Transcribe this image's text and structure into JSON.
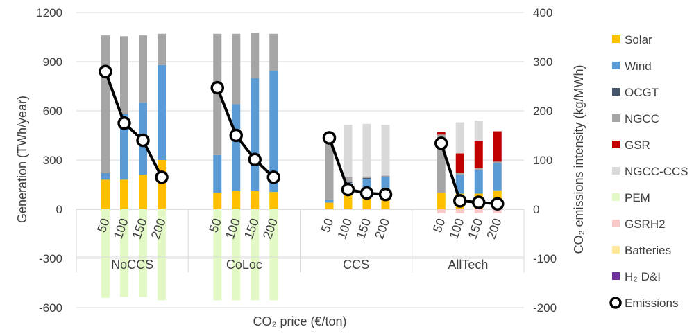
{
  "chart_data": {
    "type": "bar",
    "stacked": true,
    "xlabel": "CO₂ price (€/ton)",
    "ylabel": "Generation (TWh/year)",
    "y2label": "CO₂ emissions intensity (kg/MWh)",
    "ylim": [
      -600,
      1200
    ],
    "y2lim": [
      -200,
      400
    ],
    "yticks": [
      -600,
      -300,
      0,
      300,
      600,
      900,
      1200
    ],
    "y2ticks": [
      -200,
      -100,
      0,
      100,
      200,
      300,
      400
    ],
    "legend_position": "right",
    "groups": [
      {
        "name": "NoCCS",
        "categories": [
          "50",
          "100",
          "150",
          "200"
        ]
      },
      {
        "name": "CoLoc",
        "categories": [
          "50",
          "100",
          "150",
          "200"
        ]
      },
      {
        "name": "CCS",
        "categories": [
          "50",
          "100",
          "150",
          "200"
        ]
      },
      {
        "name": "AllTech",
        "categories": [
          "50",
          "100",
          "150",
          "200"
        ]
      }
    ],
    "series": [
      {
        "name": "Solar",
        "color": "#ffc000",
        "values": [
          180,
          180,
          210,
          300,
          100,
          110,
          110,
          105,
          40,
          95,
          100,
          100,
          100,
          95,
          95,
          115
        ]
      },
      {
        "name": "Wind",
        "color": "#5b9bd5",
        "values": [
          40,
          400,
          440,
          580,
          230,
          530,
          690,
          740,
          15,
          65,
          85,
          95,
          0,
          115,
          145,
          165
        ]
      },
      {
        "name": "OCGT",
        "color": "#44546a",
        "values": [
          0,
          0,
          0,
          0,
          0,
          0,
          0,
          0,
          5,
          5,
          5,
          5,
          0,
          0,
          0,
          0
        ]
      },
      {
        "name": "NGCC",
        "color": "#a5a5a5",
        "values": [
          840,
          475,
          410,
          190,
          740,
          430,
          275,
          225,
          360,
          30,
          10,
          5,
          355,
          10,
          10,
          10
        ]
      },
      {
        "name": "GSR",
        "color": "#c00000",
        "values": [
          0,
          0,
          0,
          0,
          0,
          0,
          0,
          0,
          0,
          0,
          0,
          0,
          15,
          120,
          165,
          185
        ]
      },
      {
        "name": "NGCC-CCS",
        "color": "#d9d9d9",
        "values": [
          0,
          0,
          0,
          0,
          0,
          0,
          0,
          0,
          0,
          320,
          320,
          310,
          0,
          190,
          125,
          0
        ]
      },
      {
        "name": "PEM",
        "color": "#e2f9c6",
        "values": [
          -540,
          -535,
          -535,
          -555,
          -555,
          -555,
          -555,
          -555,
          0,
          0,
          0,
          0,
          0,
          0,
          0,
          0
        ]
      },
      {
        "name": "GSRH2",
        "color": "#f9c9c9",
        "values": [
          0,
          0,
          0,
          0,
          0,
          0,
          0,
          0,
          0,
          0,
          0,
          0,
          -25,
          -25,
          -25,
          -25
        ]
      },
      {
        "name": "Batteries",
        "color": "#ffe699",
        "values": [
          0,
          0,
          0,
          0,
          0,
          0,
          0,
          0,
          0,
          0,
          0,
          0,
          0,
          0,
          0,
          0
        ]
      },
      {
        "name": "H₂ D&I",
        "color": "#7030a0",
        "values": [
          0,
          0,
          0,
          0,
          0,
          0,
          0,
          0,
          0,
          0,
          0,
          0,
          0,
          0,
          0,
          0
        ]
      }
    ],
    "line_series": {
      "name": "Emissions",
      "axis": "y2",
      "values": [
        280,
        175,
        140,
        65,
        247,
        150,
        101,
        65,
        145,
        40,
        33,
        30,
        134,
        17,
        14,
        11
      ]
    }
  }
}
